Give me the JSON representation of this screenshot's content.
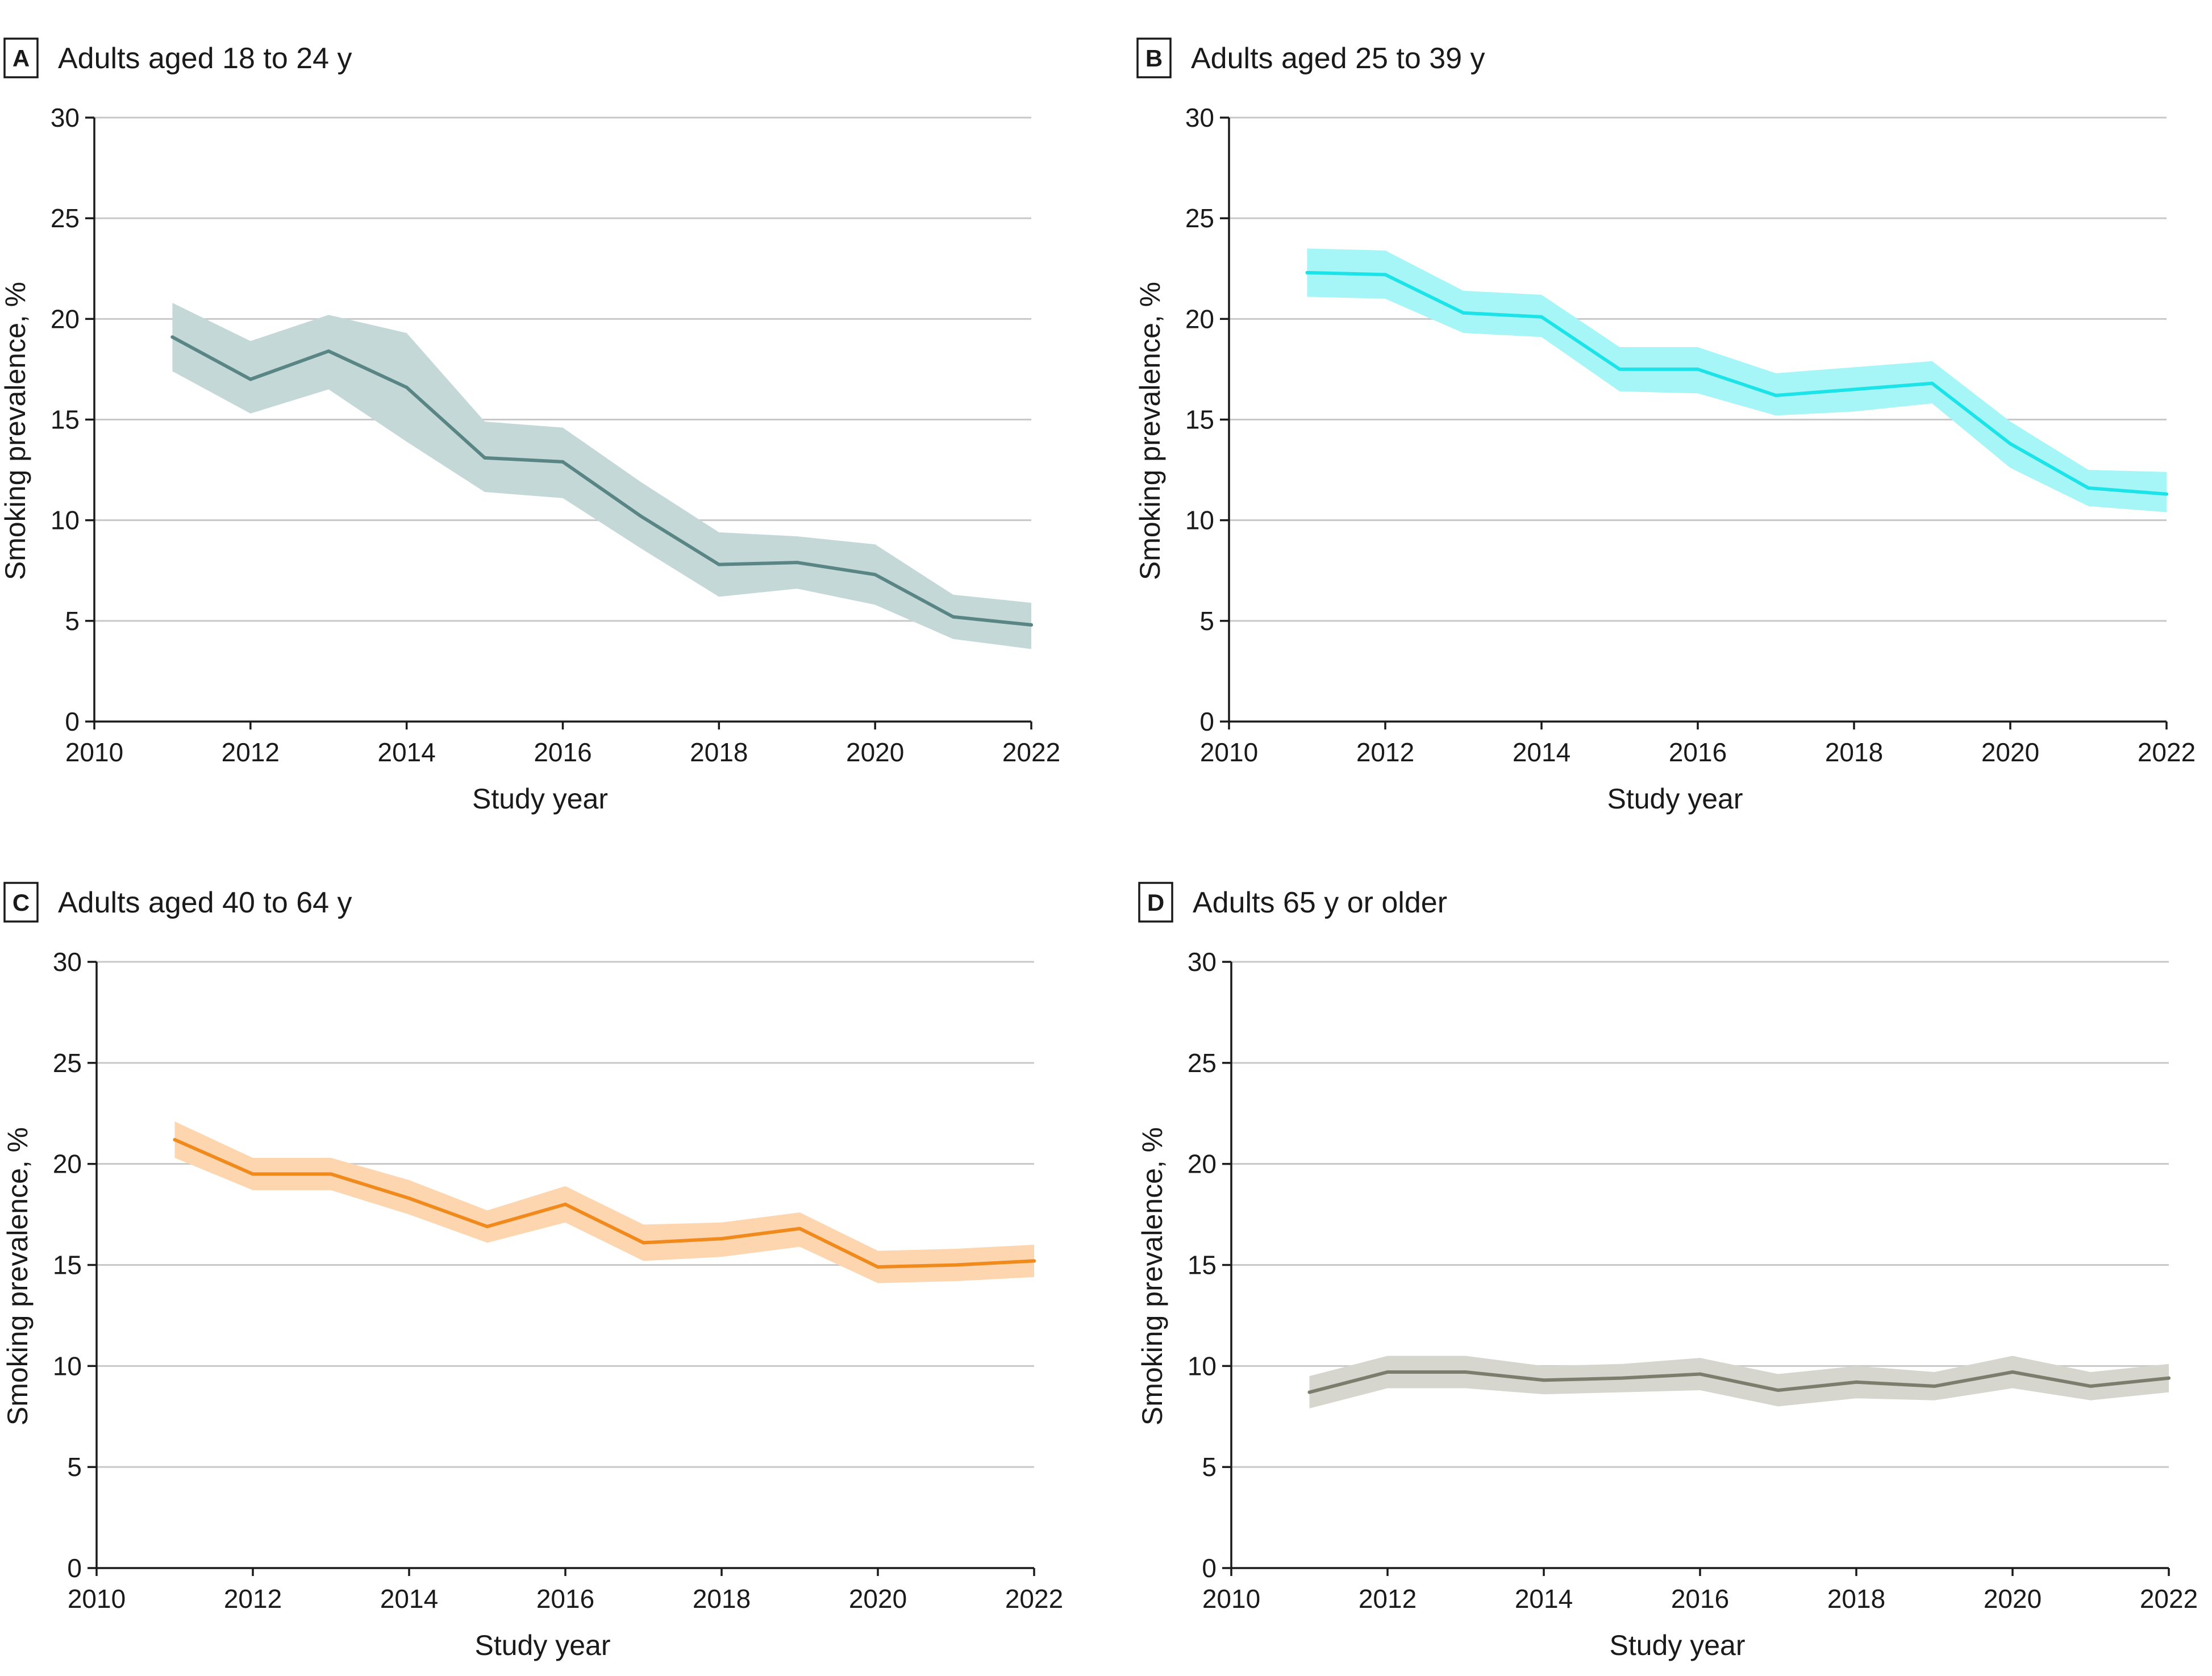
{
  "chart_data": [
    {
      "type": "line",
      "panel_letter": "A",
      "title": "Adults aged 18 to 24 y",
      "xlabel": "Study year",
      "ylabel": "Smoking prevalence, %",
      "xlim": [
        2010,
        2022
      ],
      "ylim": [
        0,
        30
      ],
      "x_ticks": [
        "2010",
        "2012",
        "2014",
        "2016",
        "2018",
        "2020",
        "2022"
      ],
      "y_ticks": [
        "0",
        "5",
        "10",
        "15",
        "20",
        "25",
        "30"
      ],
      "line_color": "#5a8585",
      "band_color": "#c5d8d8",
      "series": [
        {
          "name": "Adults aged 18 to 24 y",
          "x": [
            2011,
            2012,
            2013,
            2014,
            2015,
            2016,
            2017,
            2018,
            2019,
            2020,
            2021,
            2022
          ],
          "values": [
            19.1,
            17.0,
            18.4,
            16.6,
            13.1,
            12.9,
            10.2,
            7.8,
            7.9,
            7.3,
            5.2,
            4.8
          ],
          "lower": [
            17.4,
            15.3,
            16.5,
            13.9,
            11.4,
            11.1,
            8.6,
            6.2,
            6.6,
            5.8,
            4.1,
            3.6
          ],
          "upper": [
            20.8,
            18.9,
            20.2,
            19.3,
            14.9,
            14.6,
            11.9,
            9.4,
            9.2,
            8.8,
            6.3,
            5.9
          ]
        }
      ]
    },
    {
      "type": "line",
      "panel_letter": "B",
      "title": "Adults aged 25 to 39 y",
      "xlabel": "Study year",
      "ylabel": "Smoking prevalence, %",
      "xlim": [
        2010,
        2022
      ],
      "ylim": [
        0,
        30
      ],
      "x_ticks": [
        "2010",
        "2012",
        "2014",
        "2016",
        "2018",
        "2020",
        "2022"
      ],
      "y_ticks": [
        "0",
        "5",
        "10",
        "15",
        "20",
        "25",
        "30"
      ],
      "line_color": "#1ce3e8",
      "band_color": "#a6f6f8",
      "series": [
        {
          "name": "Adults aged 25 to 39 y",
          "x": [
            2011,
            2012,
            2013,
            2014,
            2015,
            2016,
            2017,
            2018,
            2019,
            2020,
            2021,
            2022
          ],
          "values": [
            22.3,
            22.2,
            20.3,
            20.1,
            17.5,
            17.5,
            16.2,
            16.5,
            16.8,
            13.8,
            11.6,
            11.3
          ],
          "lower": [
            21.1,
            21.0,
            19.3,
            19.1,
            16.4,
            16.3,
            15.2,
            15.4,
            15.8,
            12.6,
            10.7,
            10.4
          ],
          "upper": [
            23.5,
            23.4,
            21.4,
            21.2,
            18.6,
            18.6,
            17.3,
            17.6,
            17.9,
            14.9,
            12.5,
            12.4
          ]
        }
      ]
    },
    {
      "type": "line",
      "panel_letter": "C",
      "title": "Adults aged 40 to 64 y",
      "xlabel": "Study year",
      "ylabel": "Smoking prevalence, %",
      "xlim": [
        2010,
        2022
      ],
      "ylim": [
        0,
        30
      ],
      "x_ticks": [
        "2010",
        "2012",
        "2014",
        "2016",
        "2018",
        "2020",
        "2022"
      ],
      "y_ticks": [
        "0",
        "5",
        "10",
        "15",
        "20",
        "25",
        "30"
      ],
      "line_color": "#f08a1c",
      "band_color": "#fdd5ae",
      "series": [
        {
          "name": "Adults aged 40 to 64 y",
          "x": [
            2011,
            2012,
            2013,
            2014,
            2015,
            2016,
            2017,
            2018,
            2019,
            2020,
            2021,
            2022
          ],
          "values": [
            21.2,
            19.5,
            19.5,
            18.3,
            16.9,
            18.0,
            16.1,
            16.3,
            16.8,
            14.9,
            15.0,
            15.2
          ],
          "lower": [
            20.3,
            18.7,
            18.7,
            17.5,
            16.1,
            17.1,
            15.2,
            15.4,
            15.9,
            14.1,
            14.2,
            14.4
          ],
          "upper": [
            22.1,
            20.3,
            20.3,
            19.2,
            17.7,
            18.9,
            17.0,
            17.1,
            17.6,
            15.7,
            15.8,
            16.0
          ]
        }
      ]
    },
    {
      "type": "line",
      "panel_letter": "D",
      "title": "Adults 65 y or older",
      "xlabel": "Study year",
      "ylabel": "Smoking prevalence, %",
      "xlim": [
        2010,
        2022
      ],
      "ylim": [
        0,
        30
      ],
      "x_ticks": [
        "2010",
        "2012",
        "2014",
        "2016",
        "2018",
        "2020",
        "2022"
      ],
      "y_ticks": [
        "0",
        "5",
        "10",
        "15",
        "20",
        "25",
        "30"
      ],
      "line_color": "#7d7d6e",
      "band_color": "#d6d6ce",
      "series": [
        {
          "name": "Adults 65 y or older",
          "x": [
            2011,
            2012,
            2013,
            2014,
            2015,
            2016,
            2017,
            2018,
            2019,
            2020,
            2021,
            2022
          ],
          "values": [
            8.7,
            9.7,
            9.7,
            9.3,
            9.4,
            9.6,
            8.8,
            9.2,
            9.0,
            9.7,
            9.0,
            9.4
          ],
          "lower": [
            7.9,
            8.9,
            8.9,
            8.6,
            8.7,
            8.8,
            8.0,
            8.4,
            8.3,
            8.9,
            8.3,
            8.7
          ],
          "upper": [
            9.5,
            10.5,
            10.5,
            10.0,
            10.1,
            10.4,
            9.6,
            10.0,
            9.7,
            10.5,
            9.7,
            10.1
          ]
        }
      ]
    }
  ]
}
